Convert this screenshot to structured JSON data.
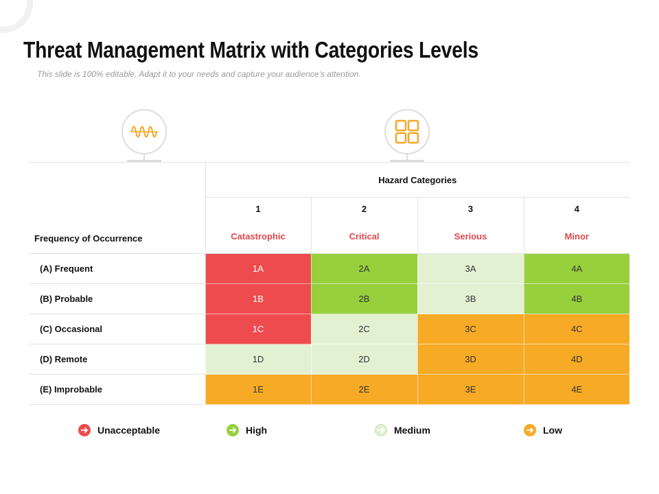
{
  "title": "Threat Management Matrix with Categories Levels",
  "subtitle": "This slide is 100% editable. Adapt it to your needs and capture your audience’s attention.",
  "icons": {
    "left": "sound-wave-icon",
    "right": "grid-squares-icon",
    "accent_color": "#f5a623"
  },
  "matrix": {
    "row_header": "Frequency of Occurrence",
    "hazard_header": "Hazard Categories",
    "columns": [
      {
        "number": "1",
        "name": "Catastrophic"
      },
      {
        "number": "2",
        "name": "Critical"
      },
      {
        "number": "3",
        "name": "Serious"
      },
      {
        "number": "4",
        "name": "Minor"
      }
    ],
    "rows": [
      {
        "label": "(A) Frequent",
        "cells": [
          {
            "text": "1A",
            "level": "unacceptable"
          },
          {
            "text": "2A",
            "level": "high"
          },
          {
            "text": "3A",
            "level": "medium"
          },
          {
            "text": "4A",
            "level": "high"
          }
        ]
      },
      {
        "label": "(B) Probable",
        "cells": [
          {
            "text": "1B",
            "level": "unacceptable"
          },
          {
            "text": "2B",
            "level": "high"
          },
          {
            "text": "3B",
            "level": "medium"
          },
          {
            "text": "4B",
            "level": "high"
          }
        ]
      },
      {
        "label": "(C) Occasional",
        "cells": [
          {
            "text": "1C",
            "level": "unacceptable"
          },
          {
            "text": "2C",
            "level": "medium"
          },
          {
            "text": "3C",
            "level": "low"
          },
          {
            "text": "4C",
            "level": "low"
          }
        ]
      },
      {
        "label": "(D) Remote",
        "cells": [
          {
            "text": "1D",
            "level": "medium"
          },
          {
            "text": "2D",
            "level": "medium"
          },
          {
            "text": "3D",
            "level": "low"
          },
          {
            "text": "4D",
            "level": "low"
          }
        ]
      },
      {
        "label": "(E) Improbable",
        "cells": [
          {
            "text": "1E",
            "level": "low"
          },
          {
            "text": "2E",
            "level": "low"
          },
          {
            "text": "3E",
            "level": "low"
          },
          {
            "text": "4E",
            "level": "low"
          }
        ]
      }
    ]
  },
  "levels": {
    "unacceptable": {
      "label": "Unacceptable",
      "color": "#ee4b4f",
      "text_color": "#ffffff"
    },
    "high": {
      "label": "High",
      "color": "#97cf3d",
      "text_color": "#333333"
    },
    "medium": {
      "label": "Medium",
      "color": "#e3f1d3",
      "text_color": "#333333"
    },
    "low": {
      "label": "Low",
      "color": "#f7aa26",
      "text_color": "#333333"
    }
  },
  "legend": [
    "unacceptable",
    "high",
    "medium",
    "low"
  ]
}
